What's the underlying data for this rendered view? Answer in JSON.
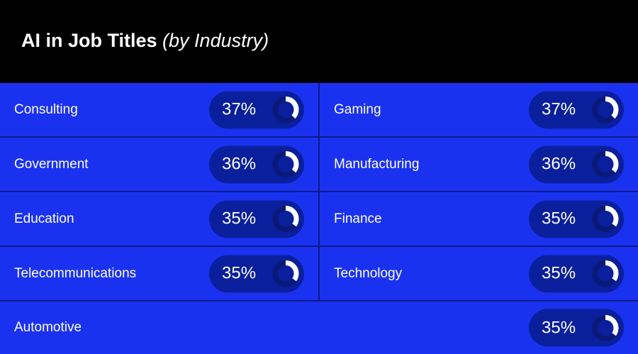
{
  "chart_data": {
    "type": "table",
    "title": "AI in Job Titles",
    "subtitle": "(by Industry)",
    "rows": [
      {
        "industry": "Consulting",
        "value": 37,
        "label": "37%"
      },
      {
        "industry": "Gaming",
        "value": 37,
        "label": "37%"
      },
      {
        "industry": "Government",
        "value": 36,
        "label": "36%"
      },
      {
        "industry": "Manufacturing",
        "value": 36,
        "label": "36%"
      },
      {
        "industry": "Education",
        "value": 35,
        "label": "35%"
      },
      {
        "industry": "Finance",
        "value": 35,
        "label": "35%"
      },
      {
        "industry": "Telecommunications",
        "value": 35,
        "label": "35%"
      },
      {
        "industry": "Technology",
        "value": 35,
        "label": "35%"
      },
      {
        "industry": "Automotive",
        "value": 35,
        "label": "35%"
      }
    ]
  },
  "colors": {
    "header_bg": "#000000",
    "cell_bg": "#1a32f0",
    "pill_bg": "#0a1f9c",
    "donut_track": "#0a1878",
    "donut_fill": "#ffffff",
    "divider": "#0a1a8a"
  }
}
